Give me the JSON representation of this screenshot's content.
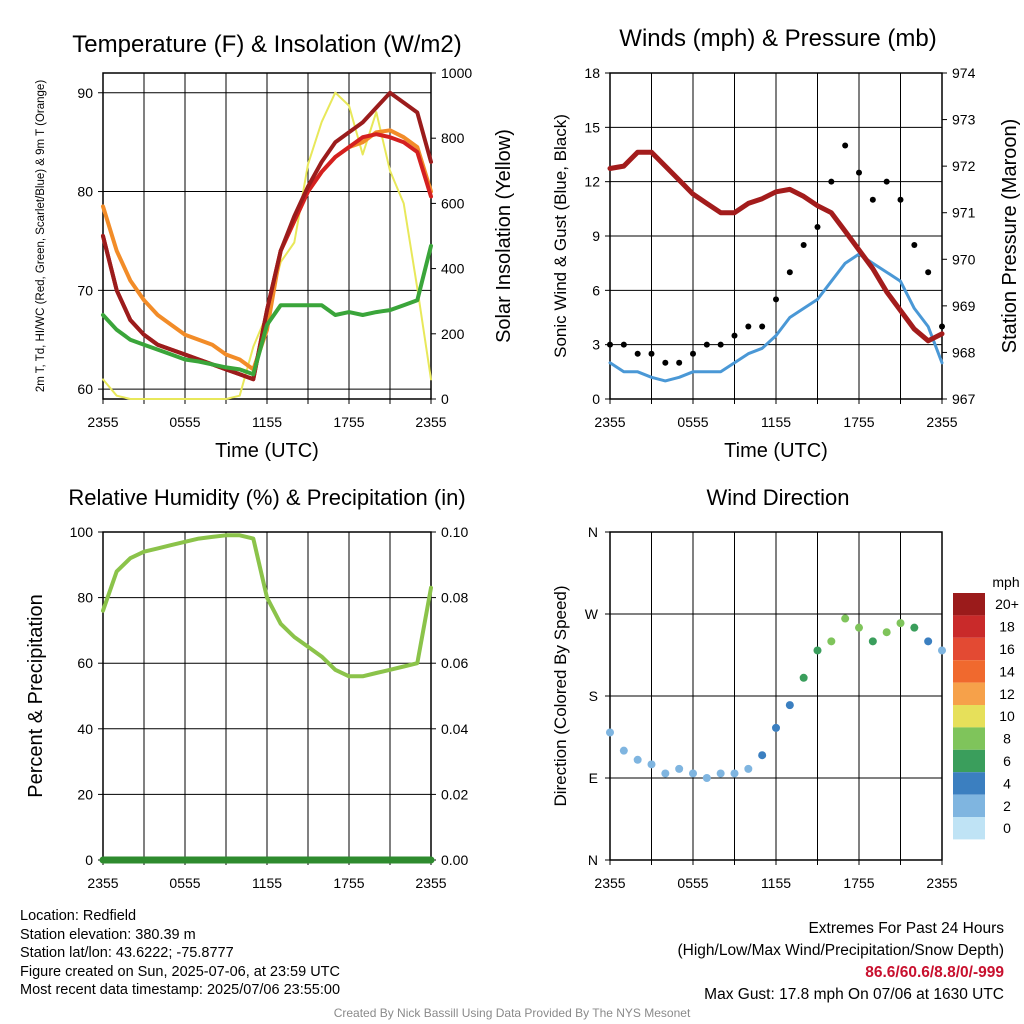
{
  "chart_data": [
    {
      "type": "line",
      "title": "Temperature (F) & Insolation (W/m2)",
      "ylabel": "2m T, Td, HI/WC (Red, Green, Scarlet/Blue) & 9m T (Orange)",
      "ylabel_right": "Solar Insolation (Yellow)",
      "xlabel": "Time (UTC)",
      "x_ticks": [
        "2355",
        "0555",
        "1155",
        "1755",
        "2355"
      ],
      "ylim": [
        59,
        92
      ],
      "y_ticks": [
        60,
        70,
        80,
        90
      ],
      "ylim_right": [
        0,
        1000
      ],
      "y_ticks_right": [
        0,
        200,
        400,
        600,
        800,
        1000
      ],
      "x_hours": [
        0,
        1,
        2,
        3,
        4,
        5,
        6,
        7,
        8,
        9,
        10,
        11,
        12,
        13,
        14,
        15,
        16,
        17,
        18,
        19,
        20,
        21,
        22,
        23,
        24
      ],
      "series": [
        {
          "color": "#e8e85a",
          "axis": "right",
          "values": [
            60,
            10,
            0,
            0,
            0,
            0,
            0,
            0,
            0,
            0,
            10,
            160,
            260,
            420,
            480,
            720,
            850,
            940,
            900,
            750,
            880,
            700,
            600,
            340,
            60
          ]
        },
        {
          "color": "#f28c28",
          "axis": "left",
          "values": [
            78.5,
            74,
            71,
            69,
            67.5,
            66.5,
            65.5,
            65,
            64.5,
            63.5,
            63,
            62,
            66,
            74,
            77,
            80,
            82,
            83.5,
            84.5,
            85,
            86,
            86.2,
            85.5,
            84.5,
            80
          ]
        },
        {
          "color": "#d42020",
          "axis": "left",
          "values": [
            75.5,
            70,
            67,
            65.5,
            64.5,
            64,
            63.5,
            63,
            62.5,
            62,
            61.5,
            61,
            68,
            74,
            77,
            80,
            82,
            83.5,
            84.5,
            85.5,
            85.8,
            85.5,
            85,
            84,
            79.5
          ]
        },
        {
          "color": "#9b1c1c",
          "axis": "left",
          "values": [
            75.5,
            70,
            67,
            65.5,
            64.5,
            64,
            63.5,
            63,
            62.5,
            62,
            61.5,
            61,
            68,
            74,
            77.5,
            80.5,
            83,
            85,
            86,
            87,
            88.5,
            90,
            89,
            88,
            83
          ]
        },
        {
          "color": "#3aa53a",
          "axis": "left",
          "values": [
            67.5,
            66,
            65,
            64.5,
            64,
            63.5,
            63,
            62.8,
            62.5,
            62.2,
            62,
            61.5,
            66.5,
            68.5,
            68.5,
            68.5,
            68.5,
            67.5,
            67.8,
            67.5,
            67.8,
            68,
            68.5,
            69,
            74.5
          ]
        }
      ]
    },
    {
      "type": "line",
      "title": "Winds (mph) & Pressure (mb)",
      "ylabel": "Sonic Wind & Gust (Blue, Black)",
      "ylabel_right": "Station Pressure (Maroon)",
      "xlabel": "Time (UTC)",
      "x_ticks": [
        "2355",
        "0555",
        "1155",
        "1755",
        "2355"
      ],
      "ylim": [
        0,
        18
      ],
      "y_ticks": [
        0,
        3,
        6,
        9,
        12,
        15,
        18
      ],
      "ylim_right": [
        967,
        974
      ],
      "y_ticks_right": [
        967,
        968,
        969,
        970,
        971,
        972,
        973,
        974
      ],
      "x_hours": [
        0,
        1,
        2,
        3,
        4,
        5,
        6,
        7,
        8,
        9,
        10,
        11,
        12,
        13,
        14,
        15,
        16,
        17,
        18,
        19,
        20,
        21,
        22,
        23,
        24
      ],
      "series": [
        {
          "name": "wind",
          "color": "#4a98d6",
          "axis": "left",
          "values": [
            2,
            1.5,
            1.5,
            1.2,
            1,
            1.2,
            1.5,
            1.5,
            1.5,
            2,
            2.5,
            2.8,
            3.5,
            4.5,
            5,
            5.5,
            6.5,
            7.5,
            8,
            7.5,
            7,
            6.5,
            5,
            4,
            2
          ]
        },
        {
          "name": "gust",
          "color": "#000000",
          "axis": "left",
          "values": [
            3,
            3,
            2.5,
            2.5,
            2,
            2,
            2.5,
            3,
            3,
            3.5,
            4,
            4,
            5.5,
            7,
            8.5,
            9.5,
            12,
            14,
            12.5,
            11,
            12,
            11,
            8.5,
            7,
            4
          ]
        },
        {
          "name": "pressure",
          "color": "#a31c1c",
          "axis": "right",
          "values": [
            971.95,
            972.0,
            972.3,
            972.3,
            972.0,
            971.7,
            971.4,
            971.2,
            971.0,
            971.0,
            971.2,
            971.3,
            971.45,
            971.5,
            971.35,
            971.15,
            971.0,
            970.6,
            970.2,
            969.8,
            969.3,
            968.9,
            968.5,
            968.25,
            968.4
          ]
        }
      ]
    },
    {
      "type": "line",
      "title": "Relative Humidity (%) & Precipitation (in)",
      "ylabel": "Percent & Precipitation",
      "x_ticks": [
        "2355",
        "0555",
        "1155",
        "1755",
        "2355"
      ],
      "ylim": [
        0,
        100
      ],
      "y_ticks": [
        0,
        20,
        40,
        60,
        80,
        100
      ],
      "ylim_right": [
        0,
        0.1
      ],
      "y_ticks_right": [
        "0.00",
        "0.02",
        "0.04",
        "0.06",
        "0.08",
        "0.10"
      ],
      "x_hours": [
        0,
        1,
        2,
        3,
        4,
        5,
        6,
        7,
        8,
        9,
        10,
        11,
        12,
        13,
        14,
        15,
        16,
        17,
        18,
        19,
        20,
        21,
        22,
        23,
        24
      ],
      "series": [
        {
          "name": "rh",
          "color": "#8bc34a",
          "axis": "left",
          "values": [
            76,
            88,
            92,
            94,
            95,
            96,
            97,
            98,
            98.5,
            99,
            99,
            98,
            80,
            72,
            68,
            65,
            62,
            58,
            56,
            56,
            57,
            58,
            59,
            60,
            83
          ]
        },
        {
          "name": "precip",
          "color": "#2e8b2e",
          "axis": "right",
          "values": [
            0,
            0,
            0,
            0,
            0,
            0,
            0,
            0,
            0,
            0,
            0,
            0,
            0,
            0,
            0,
            0,
            0,
            0,
            0,
            0,
            0,
            0,
            0,
            0,
            0
          ]
        }
      ]
    },
    {
      "type": "scatter",
      "title": "Wind Direction",
      "ylabel": "Direction (Colored By Speed)",
      "x_ticks": [
        "2355",
        "0555",
        "1155",
        "1755",
        "2355"
      ],
      "y_ticks": [
        "N",
        "E",
        "S",
        "W",
        "N"
      ],
      "ylim": [
        0,
        360
      ],
      "x_hours": [
        0,
        1,
        2,
        3,
        4,
        5,
        6,
        7,
        8,
        9,
        10,
        11,
        12,
        13,
        14,
        15,
        16,
        17,
        18,
        19,
        20,
        21,
        22,
        23,
        24
      ],
      "direction": [
        140,
        120,
        110,
        105,
        95,
        100,
        95,
        90,
        95,
        95,
        100,
        115,
        145,
        170,
        200,
        230,
        240,
        265,
        255,
        240,
        250,
        260,
        255,
        240,
        230
      ],
      "speed": [
        2,
        2,
        1,
        1,
        1,
        1,
        1,
        1,
        1,
        2,
        2,
        3,
        4,
        4,
        5,
        6,
        7,
        8,
        7,
        6,
        7,
        7,
        5,
        4,
        2
      ],
      "colorbar": {
        "title": "mph",
        "labels": [
          "20+",
          "18",
          "16",
          "14",
          "12",
          "10",
          "8",
          "6",
          "4",
          "2",
          "0"
        ],
        "colors": [
          "#9b1b1b",
          "#c92a2a",
          "#e34a33",
          "#f0692e",
          "#f6a14a",
          "#e6e05a",
          "#7fc45b",
          "#3a9e5c",
          "#3b7fc0",
          "#7fb5e0",
          "#bfe3f5"
        ]
      }
    }
  ],
  "info": {
    "location": "Location: Redfield",
    "elevation": "Station elevation: 380.39 m",
    "latlon": "Station lat/lon: 43.6222; -75.8777",
    "created": "Figure created on Sun, 2025-07-06, at 23:59 UTC",
    "recent": "Most recent data timestamp: 2025/07/06 23:55:00"
  },
  "extremes": {
    "heading": "Extremes For Past 24 Hours",
    "subheading": "(High/Low/Max Wind/Precipitation/Snow Depth)",
    "values": "86.6/60.6/8.8/0/-999",
    "max_gust": "Max Gust: 17.8 mph On 07/06 at 1630 UTC"
  },
  "credit": "Created By Nick Bassill Using Data Provided By The NYS Mesonet"
}
